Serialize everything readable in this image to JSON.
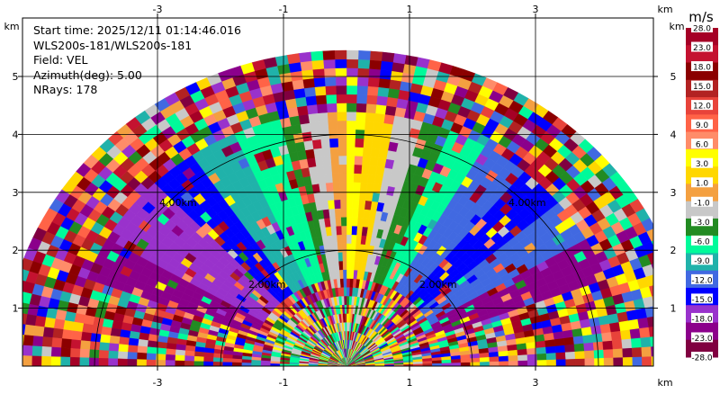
{
  "chart_data": {
    "type": "heatmap",
    "subtype": "radar-ppi-sector",
    "info_lines": [
      "Start time: 2025/12/11 01:14:46.016",
      "WLS200s-181/WLS200s-181",
      "Field: VEL",
      "Azimuth(deg): 5.00",
      "NRays: 178"
    ],
    "x_unit": "km",
    "y_unit": "km",
    "x_ticks": [
      -3,
      -1,
      1,
      3
    ],
    "y_ticks": [
      1,
      2,
      3,
      4,
      5
    ],
    "xlim": [
      -5.4,
      5.0
    ],
    "ylim": [
      0,
      5.95
    ],
    "max_range_km": 5.45,
    "range_rings_km": [
      2,
      4
    ],
    "range_ring_labels": [
      "2.00km",
      "4.00km"
    ],
    "colorbar": {
      "title": "m/s",
      "ticks": [
        "28.0",
        "23.0",
        "18.0",
        "15.0",
        "12.0",
        "9.0",
        "6.0",
        "3.0",
        "1.0",
        "-1.0",
        "-3.0",
        "-6.0",
        "-9.0",
        "-12.0",
        "-15.0",
        "-18.0",
        "-23.0",
        "-28.0"
      ],
      "colors": [
        "#a50026",
        "#c41230",
        "#8b0000",
        "#b22222",
        "#e8433a",
        "#ff6347",
        "#ff8c69",
        "#ffff00",
        "#ffd700",
        "#f4a040",
        "#c8c8c8",
        "#228b22",
        "#00fa9a",
        "#20b2aa",
        "#4169e1",
        "#0000ff",
        "#9932cc",
        "#8b008b",
        "#800040"
      ]
    }
  }
}
